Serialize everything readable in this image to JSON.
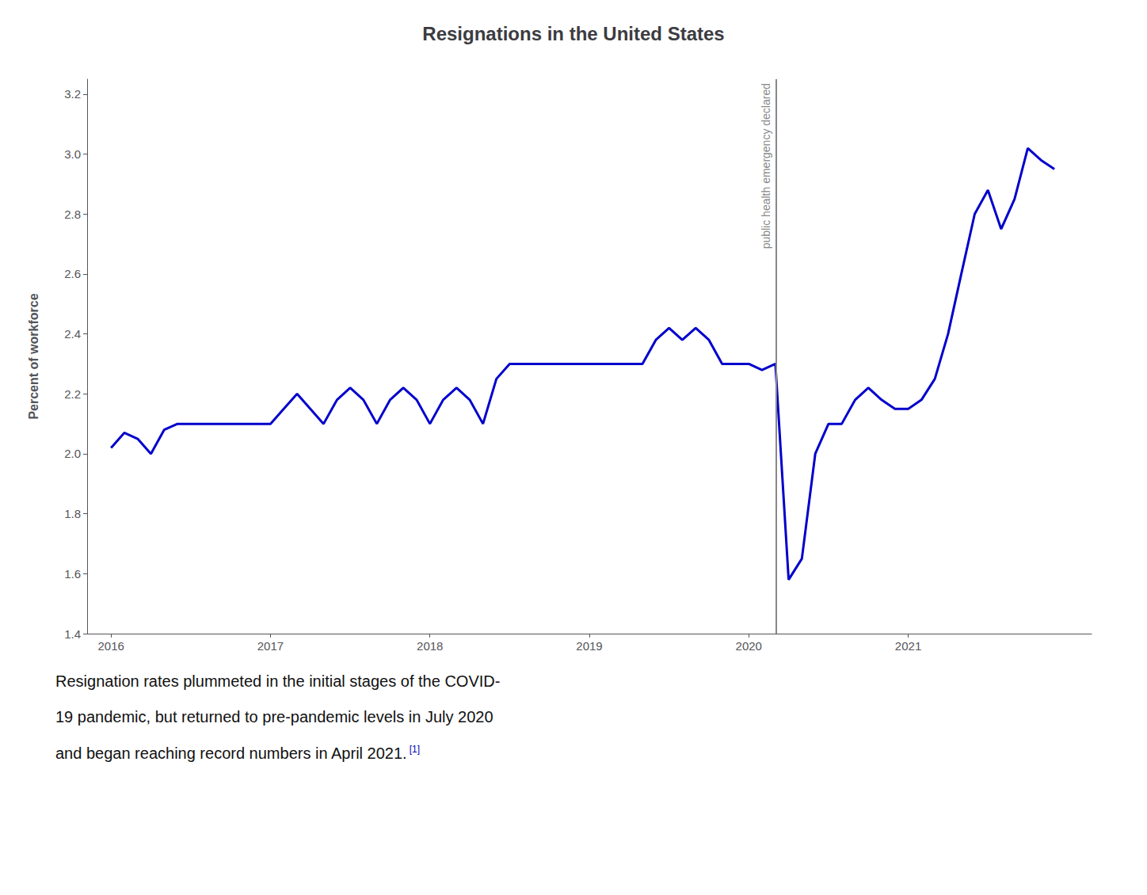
{
  "chart_data": {
    "type": "line",
    "title": "Resignations in the United States",
    "ylabel": "Percent of workforce",
    "color": "#0000cc",
    "grid": false,
    "xlim": [
      2015.85,
      2022.15
    ],
    "xticks": [
      2016,
      2017,
      2018,
      2019,
      2020,
      2021
    ],
    "ylim": [
      1.4,
      3.25
    ],
    "yticks": [
      1.4,
      1.6,
      1.8,
      {
        "value": 2.0,
        "label": "2.0"
      },
      2.2,
      2.4,
      2.6,
      2.8,
      {
        "value": 3.0,
        "label": "3.0"
      },
      3.2
    ],
    "x": [
      2016.0,
      2016.083,
      2016.167,
      2016.25,
      2016.333,
      2016.417,
      2016.5,
      2016.583,
      2016.667,
      2016.75,
      2016.833,
      2016.917,
      2017.0,
      2017.083,
      2017.167,
      2017.25,
      2017.333,
      2017.417,
      2017.5,
      2017.583,
      2017.667,
      2017.75,
      2017.833,
      2017.917,
      2018.0,
      2018.083,
      2018.167,
      2018.25,
      2018.333,
      2018.417,
      2018.5,
      2018.583,
      2018.667,
      2018.75,
      2018.833,
      2018.917,
      2019.0,
      2019.083,
      2019.167,
      2019.25,
      2019.333,
      2019.417,
      2019.5,
      2019.583,
      2019.667,
      2019.75,
      2019.833,
      2019.917,
      2020.0,
      2020.083,
      2020.167,
      2020.25,
      2020.333,
      2020.417,
      2020.5,
      2020.583,
      2020.667,
      2020.75,
      2020.833,
      2020.917,
      2021.0,
      2021.083,
      2021.167,
      2021.25,
      2021.333,
      2021.417,
      2021.5,
      2021.583,
      2021.667,
      2021.75,
      2021.833,
      2021.917
    ],
    "values": [
      2.02,
      2.07,
      2.05,
      2.0,
      2.08,
      2.1,
      2.1,
      2.1,
      2.1,
      2.1,
      2.1,
      2.1,
      2.1,
      2.15,
      2.2,
      2.15,
      2.1,
      2.18,
      2.22,
      2.18,
      2.1,
      2.18,
      2.22,
      2.18,
      2.1,
      2.18,
      2.22,
      2.18,
      2.1,
      2.25,
      2.3,
      2.3,
      2.3,
      2.3,
      2.3,
      2.3,
      2.3,
      2.3,
      2.3,
      2.3,
      2.3,
      2.38,
      2.42,
      2.38,
      2.42,
      2.38,
      2.3,
      2.3,
      2.3,
      2.28,
      2.3,
      1.58,
      1.65,
      2.0,
      2.1,
      2.1,
      2.18,
      2.22,
      2.18,
      2.15,
      2.15,
      2.18,
      2.25,
      2.4,
      2.6,
      2.8,
      2.88,
      2.75,
      2.85,
      3.02,
      2.98,
      2.95
    ],
    "annotations": [
      {
        "type": "vline",
        "x": 2020.17,
        "label": "public health emergency declared",
        "color": "#888888"
      }
    ],
    "caption": [
      "Resignation rates plummeted in the initial stages of the COVID-",
      "19 pandemic, but returned to pre-pandemic levels in July 2020",
      "and began reaching record numbers in April 2021."
    ],
    "caption_note": "[1]"
  }
}
